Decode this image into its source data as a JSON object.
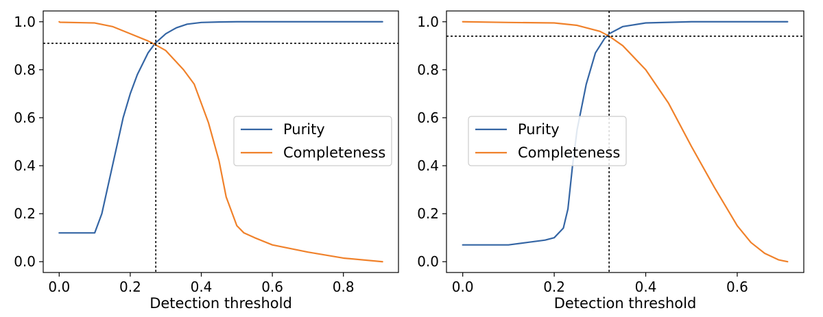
{
  "chart_data": [
    {
      "type": "line",
      "title": "",
      "xlabel": "Detection threshold",
      "ylabel": "",
      "xlim": [
        -0.045,
        0.955
      ],
      "ylim": [
        -0.045,
        1.045
      ],
      "xticks": [
        0.0,
        0.2,
        0.4,
        0.6,
        0.8
      ],
      "xtick_labels": [
        "0.0",
        "0.2",
        "0.4",
        "0.6",
        "0.8"
      ],
      "yticks": [
        0.0,
        0.2,
        0.4,
        0.6,
        0.8,
        1.0
      ],
      "ytick_labels": [
        "0.0",
        "0.2",
        "0.4",
        "0.6",
        "0.8",
        "1.0"
      ],
      "legend": {
        "position": "center-right"
      },
      "reference_lines": {
        "vertical_x": 0.272,
        "horizontal_y": 0.91
      },
      "series": [
        {
          "name": "Purity",
          "color": "#3465a4",
          "x": [
            0.0,
            0.1,
            0.12,
            0.15,
            0.18,
            0.2,
            0.22,
            0.25,
            0.27,
            0.3,
            0.33,
            0.36,
            0.4,
            0.45,
            0.5,
            0.6,
            0.7,
            0.8,
            0.91
          ],
          "y": [
            0.12,
            0.12,
            0.2,
            0.4,
            0.6,
            0.7,
            0.78,
            0.87,
            0.91,
            0.95,
            0.975,
            0.99,
            0.997,
            0.999,
            1.0,
            1.0,
            1.0,
            1.0,
            1.0
          ]
        },
        {
          "name": "Completeness",
          "color": "#f0812a",
          "x": [
            0.0,
            0.002,
            0.1,
            0.15,
            0.2,
            0.25,
            0.27,
            0.3,
            0.35,
            0.38,
            0.4,
            0.42,
            0.45,
            0.47,
            0.5,
            0.52,
            0.55,
            0.6,
            0.7,
            0.8,
            0.91
          ],
          "y": [
            1.0,
            0.998,
            0.995,
            0.98,
            0.95,
            0.92,
            0.905,
            0.88,
            0.8,
            0.74,
            0.66,
            0.58,
            0.42,
            0.27,
            0.15,
            0.12,
            0.1,
            0.07,
            0.04,
            0.015,
            0.0
          ]
        }
      ]
    },
    {
      "type": "line",
      "title": "",
      "xlabel": "Detection threshold",
      "ylabel": "",
      "xlim": [
        -0.0355,
        0.7455
      ],
      "ylim": [
        -0.045,
        1.045
      ],
      "xticks": [
        0.0,
        0.2,
        0.4,
        0.6
      ],
      "xtick_labels": [
        "0.0",
        "0.2",
        "0.4",
        "0.6"
      ],
      "yticks": [
        0.0,
        0.2,
        0.4,
        0.6,
        0.8,
        1.0
      ],
      "ytick_labels": [
        "0.0",
        "0.2",
        "0.4",
        "0.6",
        "0.8",
        "1.0"
      ],
      "legend": {
        "position": "center-left"
      },
      "reference_lines": {
        "vertical_x": 0.32,
        "horizontal_y": 0.94
      },
      "series": [
        {
          "name": "Purity",
          "color": "#3465a4",
          "x": [
            0.0,
            0.1,
            0.14,
            0.18,
            0.2,
            0.22,
            0.23,
            0.24,
            0.25,
            0.27,
            0.29,
            0.31,
            0.32,
            0.35,
            0.4,
            0.5,
            0.6,
            0.71
          ],
          "y": [
            0.07,
            0.07,
            0.08,
            0.09,
            0.1,
            0.14,
            0.22,
            0.4,
            0.55,
            0.74,
            0.87,
            0.93,
            0.95,
            0.98,
            0.995,
            1.0,
            1.0,
            1.0
          ],
          "note": "smooth sigmoid"
        },
        {
          "name": "Completeness",
          "color": "#f0812a",
          "x": [
            0.0,
            0.1,
            0.2,
            0.25,
            0.3,
            0.32,
            0.35,
            0.4,
            0.45,
            0.5,
            0.55,
            0.6,
            0.63,
            0.66,
            0.69,
            0.71
          ],
          "y": [
            1.0,
            0.997,
            0.995,
            0.985,
            0.96,
            0.94,
            0.9,
            0.8,
            0.66,
            0.48,
            0.31,
            0.15,
            0.08,
            0.035,
            0.008,
            0.0
          ]
        }
      ]
    }
  ]
}
